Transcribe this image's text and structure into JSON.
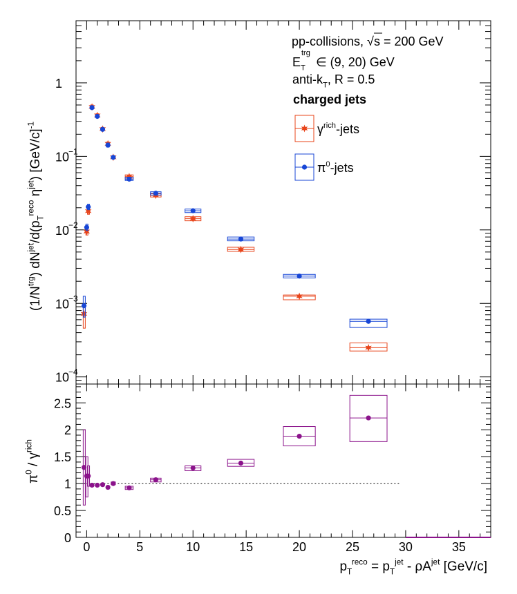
{
  "chart_data": [
    {
      "type": "scatter",
      "panel": "top",
      "ylabel": "(1/N^trg) dN^jet/d(p_T^reco η^jet) [GeV/c]^-1",
      "yscale": "log",
      "ylim": [
        8e-05,
        7
      ],
      "xlim": [
        -1,
        38
      ],
      "y_ticks": [
        {
          "value": 0.0001,
          "label": "10",
          "exp": "−4"
        },
        {
          "value": 0.001,
          "label": "10",
          "exp": "−3"
        },
        {
          "value": 0.01,
          "label": "10",
          "exp": "−2"
        },
        {
          "value": 0.1,
          "label": "10",
          "exp": "−1"
        },
        {
          "value": 1,
          "label": "1",
          "exp": ""
        }
      ],
      "legend_placement": "top-right",
      "annotations": {
        "line1": "pp-collisions, √s = 200 GeV",
        "line2": "E_T^trg ∈ (9, 20) GeV",
        "line3": "anti-k_T, R = 0.5",
        "line4": "charged jets"
      },
      "series": [
        {
          "name": "γ^rich-jets",
          "color": "#e8441a",
          "marker": "star",
          "points": [
            {
              "x": -0.25,
              "y": 0.00072,
              "w": 0.15,
              "lo": 0.00046,
              "hi": 0.00098
            },
            {
              "x": 0.0,
              "y": 0.0095,
              "w": 0.15,
              "lo": 0.0085,
              "hi": 0.0106
            },
            {
              "x": 0.15,
              "y": 0.018,
              "w": 0.15,
              "lo": 0.0163,
              "hi": 0.0198
            },
            {
              "x": 0.5,
              "y": 0.47,
              "w": 0.25,
              "lo": 0.44,
              "hi": 0.5
            },
            {
              "x": 1.0,
              "y": 0.36,
              "w": 0.25,
              "lo": 0.34,
              "hi": 0.38
            },
            {
              "x": 1.5,
              "y": 0.235,
              "w": 0.25,
              "lo": 0.222,
              "hi": 0.248
            },
            {
              "x": 2.0,
              "y": 0.148,
              "w": 0.25,
              "lo": 0.139,
              "hi": 0.157
            },
            {
              "x": 2.5,
              "y": 0.097,
              "w": 0.25,
              "lo": 0.093,
              "hi": 0.101
            },
            {
              "x": 4.0,
              "y": 0.053,
              "w": 0.75,
              "lo": 0.049,
              "hi": 0.056
            },
            {
              "x": 6.5,
              "y": 0.0295,
              "w": 1.0,
              "lo": 0.028,
              "hi": 0.031
            },
            {
              "x": 10.0,
              "y": 0.0142,
              "w": 1.5,
              "lo": 0.0133,
              "hi": 0.0151
            },
            {
              "x": 14.5,
              "y": 0.0054,
              "w": 2.5,
              "lo": 0.0051,
              "hi": 0.0058
            },
            {
              "x": 20.0,
              "y": 0.00125,
              "w": 3.0,
              "lo": 0.00112,
              "hi": 0.0013
            },
            {
              "x": 26.5,
              "y": 0.00025,
              "w": 3.5,
              "lo": 0.000225,
              "hi": 0.00029
            }
          ]
        },
        {
          "name": "π^0-jets",
          "color": "#1746d6",
          "marker": "circle",
          "points": [
            {
              "x": -0.25,
              "y": 0.00093,
              "w": 0.15,
              "lo": 0.00065,
              "hi": 0.00125
            },
            {
              "x": 0.0,
              "y": 0.0108,
              "w": 0.15,
              "lo": 0.0098,
              "hi": 0.012
            },
            {
              "x": 0.15,
              "y": 0.0205,
              "w": 0.15,
              "lo": 0.0188,
              "hi": 0.0223
            },
            {
              "x": 0.5,
              "y": 0.46,
              "w": 0.25,
              "lo": 0.44,
              "hi": 0.49
            },
            {
              "x": 1.0,
              "y": 0.35,
              "w": 0.25,
              "lo": 0.335,
              "hi": 0.37
            },
            {
              "x": 1.5,
              "y": 0.233,
              "w": 0.25,
              "lo": 0.224,
              "hi": 0.243
            },
            {
              "x": 2.0,
              "y": 0.142,
              "w": 0.25,
              "lo": 0.134,
              "hi": 0.152
            },
            {
              "x": 2.5,
              "y": 0.097,
              "w": 0.25,
              "lo": 0.093,
              "hi": 0.101
            },
            {
              "x": 4.0,
              "y": 0.049,
              "w": 0.75,
              "lo": 0.047,
              "hi": 0.052
            },
            {
              "x": 6.5,
              "y": 0.0315,
              "w": 1.0,
              "lo": 0.0298,
              "hi": 0.033
            },
            {
              "x": 10.0,
              "y": 0.0182,
              "w": 1.5,
              "lo": 0.0172,
              "hi": 0.0192
            },
            {
              "x": 14.5,
              "y": 0.0075,
              "w": 2.5,
              "lo": 0.0071,
              "hi": 0.008
            },
            {
              "x": 20.0,
              "y": 0.00235,
              "w": 3.0,
              "lo": 0.00222,
              "hi": 0.00248
            },
            {
              "x": 26.5,
              "y": 0.00057,
              "w": 3.5,
              "lo": 0.00047,
              "hi": 0.00061
            }
          ]
        }
      ]
    },
    {
      "type": "scatter",
      "panel": "bottom",
      "ylabel": "π^0 / γ^rich",
      "xlabel": "p_T^reco = p_T^jet - ρA^jet [GeV/c]",
      "xlim": [
        -1,
        38
      ],
      "ylim": [
        0,
        2.85
      ],
      "x_ticks": [
        0,
        5,
        10,
        15,
        20,
        25,
        30,
        35
      ],
      "x_tick_labels": [
        "0",
        "5",
        "10",
        "15",
        "20",
        "25",
        "30",
        "35"
      ],
      "y_ticks": [
        0,
        0.5,
        1,
        1.5,
        2,
        2.5
      ],
      "y_tick_labels": [
        "0",
        "0.5",
        "1",
        "1.5",
        "2",
        "2.5"
      ],
      "reference_line": {
        "y": 1,
        "x_from": 0,
        "x_to": 29.5,
        "style": "dotted"
      },
      "series": [
        {
          "name": "",
          "color": "#8b138b",
          "marker": "circle",
          "points": [
            {
              "x": -0.25,
              "y": 1.3,
              "w": 0.15,
              "lo": 0.6,
              "hi": 2.0
            },
            {
              "x": 0.0,
              "y": 1.14,
              "w": 0.15,
              "lo": 0.75,
              "hi": 1.5
            },
            {
              "x": 0.15,
              "y": 1.14,
              "w": 0.15,
              "lo": 0.95,
              "hi": 1.33
            },
            {
              "x": 0.5,
              "y": 0.97,
              "w": 0.25,
              "lo": 0.95,
              "hi": 0.99
            },
            {
              "x": 1.0,
              "y": 0.97,
              "w": 0.25,
              "lo": 0.95,
              "hi": 0.99
            },
            {
              "x": 1.5,
              "y": 0.98,
              "w": 0.25,
              "lo": 0.96,
              "hi": 1.0
            },
            {
              "x": 2.0,
              "y": 0.93,
              "w": 0.25,
              "lo": 0.9,
              "hi": 0.96
            },
            {
              "x": 2.5,
              "y": 1.0,
              "w": 0.4,
              "lo": 0.98,
              "hi": 1.03
            },
            {
              "x": 4.0,
              "y": 0.92,
              "w": 0.75,
              "lo": 0.89,
              "hi": 0.95
            },
            {
              "x": 6.5,
              "y": 1.07,
              "w": 1.0,
              "lo": 1.03,
              "hi": 1.1
            },
            {
              "x": 10.0,
              "y": 1.29,
              "w": 1.5,
              "lo": 1.24,
              "hi": 1.33
            },
            {
              "x": 14.5,
              "y": 1.38,
              "w": 2.5,
              "lo": 1.32,
              "hi": 1.45
            },
            {
              "x": 20.0,
              "y": 1.88,
              "w": 3.0,
              "lo": 1.7,
              "hi": 2.06
            },
            {
              "x": 26.5,
              "y": 2.22,
              "w": 3.5,
              "lo": 1.78,
              "hi": 2.64
            }
          ]
        }
      ]
    }
  ]
}
